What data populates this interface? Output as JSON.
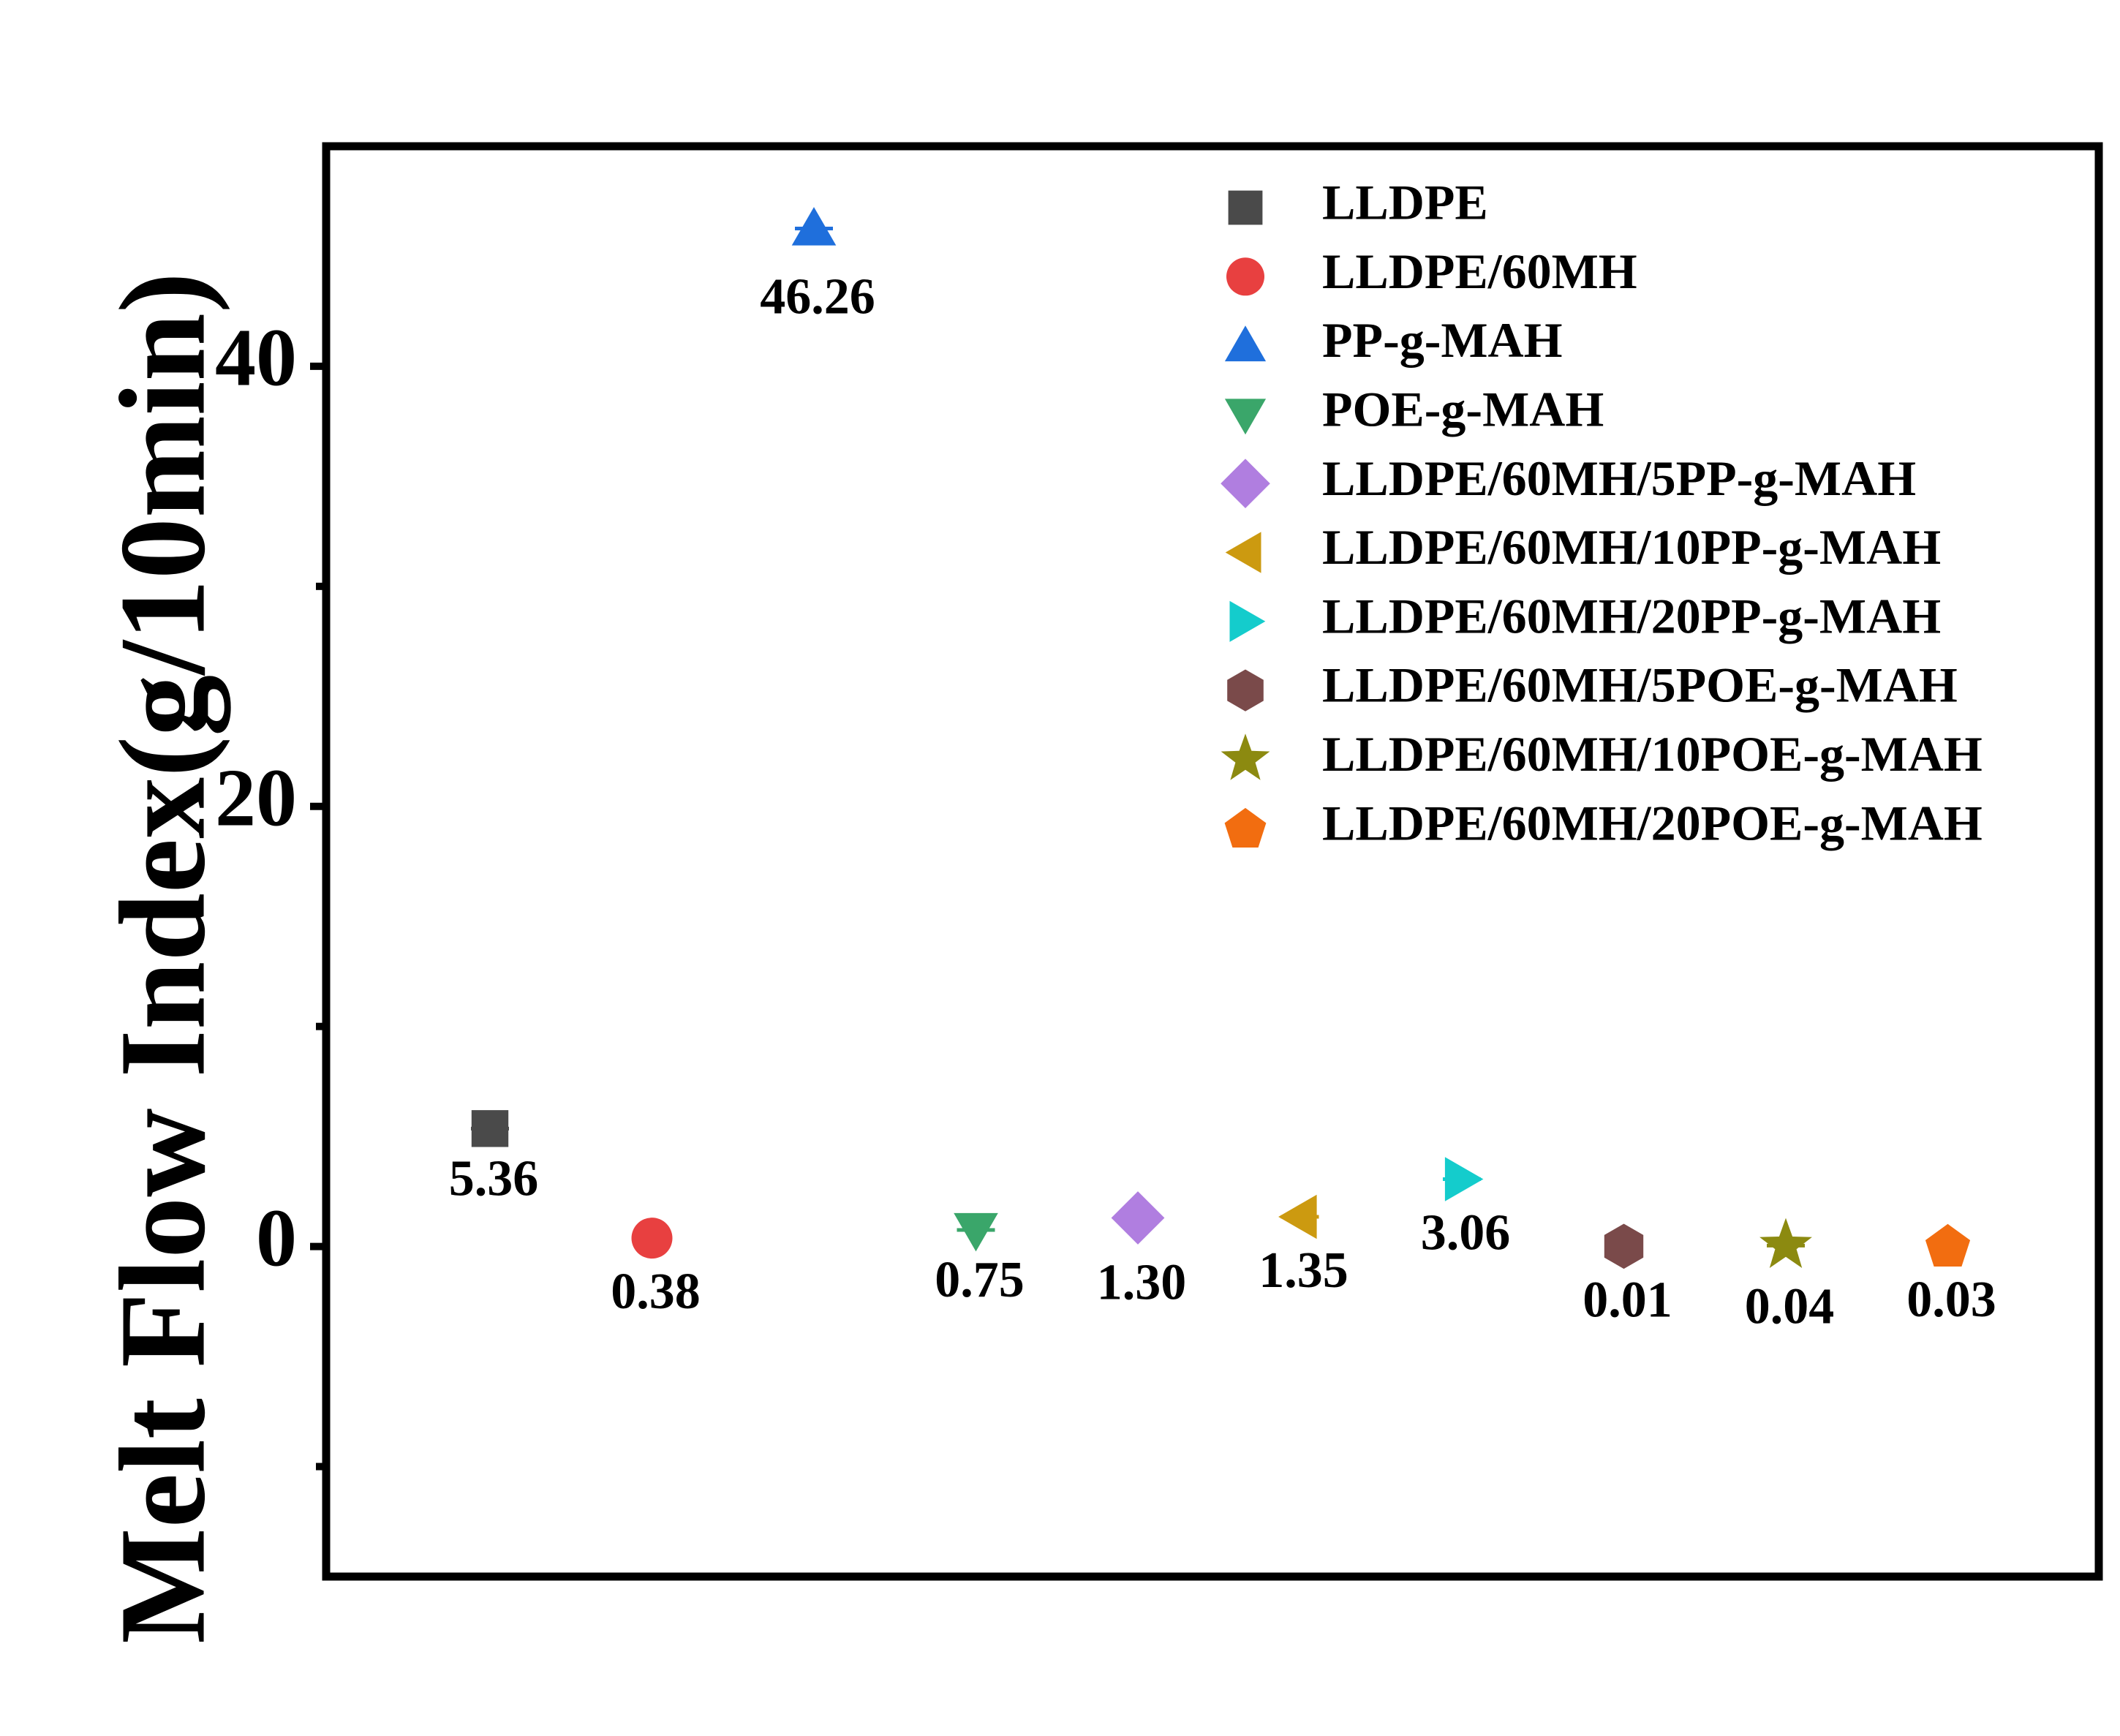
{
  "chart_data": {
    "type": "scatter",
    "title": "",
    "xlabel": "",
    "ylabel": "Melt Flow Index(g/10min)",
    "ylim": [
      -15,
      50
    ],
    "yticks": [
      0,
      20,
      40
    ],
    "ytick_labels": [
      "0",
      "20",
      "40"
    ],
    "y_minor_ticks": [
      -10,
      10,
      30
    ],
    "grid": false,
    "legend_position": "top-right",
    "series": [
      {
        "name": "LLDPE",
        "x": 1,
        "value": 5.36,
        "label": "5.36",
        "marker": "square",
        "color": "#4a4a4a"
      },
      {
        "name": "LLDPE/60MH",
        "x": 2,
        "value": 0.38,
        "label": "0.38",
        "marker": "circle",
        "color": "#e84040"
      },
      {
        "name": "PP-g-MAH",
        "x": 3,
        "value": 46.26,
        "label": "46.26",
        "marker": "triangle-up",
        "color": "#1f6fdc"
      },
      {
        "name": "POE-g-MAH",
        "x": 4,
        "value": 0.75,
        "label": "0.75",
        "marker": "triangle-down",
        "color": "#3aa66a"
      },
      {
        "name": "LLDPE/60MH/5PP-g-MAH",
        "x": 5,
        "value": 1.3,
        "label": "1.30",
        "marker": "diamond",
        "color": "#b07ee0"
      },
      {
        "name": "LLDPE/60MH/10PP-g-MAH",
        "x": 6,
        "value": 1.35,
        "label": "1.35",
        "marker": "triangle-left",
        "color": "#cc9a10"
      },
      {
        "name": "LLDPE/60MH/20PP-g-MAH",
        "x": 7,
        "value": 3.06,
        "label": "3.06",
        "marker": "triangle-right",
        "color": "#14cccc"
      },
      {
        "name": "LLDPE/60MH/5POE-g-MAH",
        "x": 8,
        "value": 0.01,
        "label": "0.01",
        "marker": "hexagon",
        "color": "#7a4a4a"
      },
      {
        "name": "LLDPE/60MH/10POE-g-MAH",
        "x": 9,
        "value": 0.04,
        "label": "0.04",
        "marker": "star",
        "color": "#8c8a10"
      },
      {
        "name": "LLDPE/60MH/20POE-g-MAH",
        "x": 10,
        "value": 0.03,
        "label": "0.03",
        "marker": "pentagon",
        "color": "#f26d10"
      }
    ]
  }
}
